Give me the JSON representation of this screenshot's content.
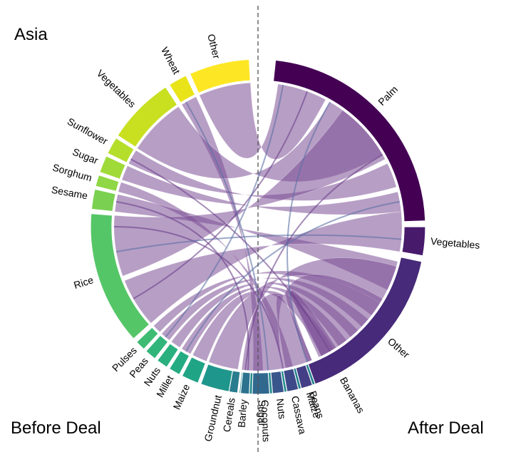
{
  "labels": {
    "region": "Asia",
    "before": "Before Deal",
    "after": "After Deal"
  },
  "before_deal": [
    {
      "name": "Other",
      "color": "#fde725"
    },
    {
      "name": "Wheat",
      "color": "#e8e419"
    },
    {
      "name": "Vegetables",
      "color": "#c8e020"
    },
    {
      "name": "Sunflower",
      "color": "#b5de2b"
    },
    {
      "name": "Sugar",
      "color": "#a0da39"
    },
    {
      "name": "Sorghum",
      "color": "#8fd744"
    },
    {
      "name": "Sesame",
      "color": "#7ad151"
    },
    {
      "name": "Rice",
      "color": "#55c667"
    },
    {
      "name": "Pulses",
      "color": "#3fbc73"
    },
    {
      "name": "Peas",
      "color": "#31b57b"
    },
    {
      "name": "Nuts",
      "color": "#2ab07f"
    },
    {
      "name": "Millet",
      "color": "#25ab82"
    },
    {
      "name": "Maize",
      "color": "#20a486"
    },
    {
      "name": "Groundnut",
      "color": "#1f968b"
    },
    {
      "name": "Coconuts",
      "color": "#228b8d"
    },
    {
      "name": "Beans",
      "color": "#26818e"
    },
    {
      "name": "Bananas",
      "color": "#2a788e"
    }
  ],
  "after_deal": [
    {
      "name": "Palm",
      "color": "#440154"
    },
    {
      "name": "Vegetables",
      "color": "#481a6c"
    },
    {
      "name": "Other",
      "color": "#472a7a"
    },
    {
      "name": "Maize",
      "color": "#433e85"
    },
    {
      "name": "Cassava",
      "color": "#3e4989"
    },
    {
      "name": "Nuts",
      "color": "#39568c"
    },
    {
      "name": "Sugar",
      "color": "#31688e"
    },
    {
      "name": "Barley",
      "color": "#2c728e"
    },
    {
      "name": "Cereals",
      "color": "#287c8e"
    }
  ],
  "link_color": "#7b4f96"
}
